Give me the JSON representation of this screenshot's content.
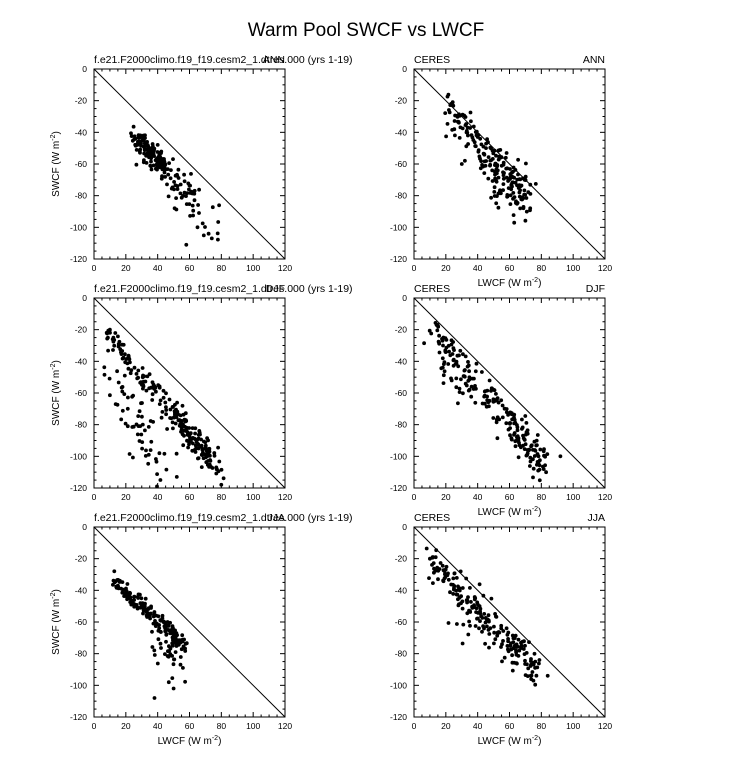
{
  "figure_title": "Warm Pool SWCF vs LWCF",
  "chart_data": [
    {
      "type": "scatter",
      "panel": "model-ANN",
      "left_label": "f.e21.F2000climo.f19_f19.cesm2_1.dtres.000 (yrs 1-19)",
      "right_label": "ANN",
      "xlabel": "LWCF (W m-2)",
      "ylabel": "SWCF (W m-2)",
      "xlim": [
        0,
        120
      ],
      "ylim": [
        -120,
        0
      ],
      "xticks": [
        "0",
        "20",
        "40",
        "60",
        "80",
        "100",
        "120"
      ],
      "yticks": [
        "0",
        "-20",
        "-40",
        "-60",
        "-80",
        "-100",
        "-120"
      ],
      "one_to_one_line": true,
      "show_xlabel": false,
      "show_ylabel": true,
      "clusters": [
        {
          "x0": 25,
          "y0": -42,
          "x1": 45,
          "y1": -62,
          "spread": 3,
          "n": 120
        },
        {
          "x0": 30,
          "y0": -55,
          "x1": 65,
          "y1": -80,
          "spread": 5,
          "n": 60
        },
        {
          "x0": 45,
          "y0": -70,
          "x1": 75,
          "y1": -100,
          "spread": 7,
          "n": 30
        }
      ],
      "points": [
        [
          58,
          -111
        ],
        [
          72,
          -104
        ],
        [
          74,
          -107
        ],
        [
          65,
          -100
        ]
      ]
    },
    {
      "type": "scatter",
      "panel": "obs-ANN",
      "left_label": "CERES",
      "right_label": "ANN",
      "xlabel": "LWCF (W m-2)",
      "ylabel": "SWCF (W m-2)",
      "xlim": [
        0,
        120
      ],
      "ylim": [
        -120,
        0
      ],
      "xticks": [
        "0",
        "20",
        "40",
        "60",
        "80",
        "100",
        "120"
      ],
      "yticks": [
        "0",
        "-20",
        "-40",
        "-60",
        "-80",
        "-100",
        "-120"
      ],
      "one_to_one_line": true,
      "show_xlabel": true,
      "show_ylabel": false,
      "clusters": [
        {
          "x0": 22,
          "y0": -28,
          "x1": 72,
          "y1": -80,
          "spread": 6,
          "n": 170
        },
        {
          "x0": 40,
          "y0": -55,
          "x1": 70,
          "y1": -88,
          "spread": 8,
          "n": 40
        }
      ],
      "points": [
        [
          30,
          -60
        ],
        [
          32,
          -58
        ],
        [
          73,
          -88
        ]
      ]
    },
    {
      "type": "scatter",
      "panel": "model-DJF",
      "left_label": "f.e21.F2000climo.f19_f19.cesm2_1.dtres.000 (yrs 1-19)",
      "right_label": "DJF",
      "xlabel": "LWCF (W m-2)",
      "ylabel": "SWCF (W m-2)",
      "xlim": [
        0,
        120
      ],
      "ylim": [
        -120,
        0
      ],
      "xticks": [
        "0",
        "20",
        "40",
        "60",
        "80",
        "100",
        "120"
      ],
      "yticks": [
        "0",
        "-20",
        "-40",
        "-60",
        "-80",
        "-100",
        "-120"
      ],
      "one_to_one_line": true,
      "show_xlabel": false,
      "show_ylabel": true,
      "clusters": [
        {
          "x0": 8,
          "y0": -22,
          "x1": 80,
          "y1": -110,
          "spread": 4,
          "n": 170
        },
        {
          "x0": 8,
          "y0": -35,
          "x1": 40,
          "y1": -110,
          "spread": 10,
          "n": 60
        },
        {
          "x0": 50,
          "y0": -75,
          "x1": 78,
          "y1": -105,
          "spread": 5,
          "n": 60
        }
      ],
      "points": [
        [
          8,
          -22
        ],
        [
          10,
          -20
        ],
        [
          52,
          -113
        ],
        [
          80,
          -118
        ]
      ]
    },
    {
      "type": "scatter",
      "panel": "obs-DJF",
      "left_label": "CERES",
      "right_label": "DJF",
      "xlabel": "LWCF (W m-2)",
      "ylabel": "SWCF (W m-2)",
      "xlim": [
        0,
        120
      ],
      "ylim": [
        -120,
        0
      ],
      "xticks": [
        "0",
        "20",
        "40",
        "60",
        "80",
        "100",
        "120"
      ],
      "yticks": [
        "0",
        "-20",
        "-40",
        "-60",
        "-80",
        "-100",
        "-120"
      ],
      "one_to_one_line": true,
      "show_xlabel": true,
      "show_ylabel": false,
      "clusters": [
        {
          "x0": 10,
          "y0": -18,
          "x1": 82,
          "y1": -105,
          "spread": 6,
          "n": 160
        },
        {
          "x0": 15,
          "y0": -40,
          "x1": 40,
          "y1": -65,
          "spread": 6,
          "n": 25
        },
        {
          "x0": 60,
          "y0": -75,
          "x1": 82,
          "y1": -108,
          "spread": 6,
          "n": 40
        }
      ],
      "points": [
        [
          92,
          -100
        ],
        [
          83,
          -110
        ],
        [
          74,
          -93
        ]
      ]
    },
    {
      "type": "scatter",
      "panel": "model-JJA",
      "left_label": "f.e21.F2000climo.f19_f19.cesm2_1.dtres.000 (yrs 1-19)",
      "right_label": "JJA",
      "xlabel": "LWCF (W m-2)",
      "ylabel": "SWCF (W m-2)",
      "xlim": [
        0,
        120
      ],
      "ylim": [
        -120,
        0
      ],
      "xticks": [
        "0",
        "20",
        "40",
        "60",
        "80",
        "100",
        "120"
      ],
      "yticks": [
        "0",
        "-20",
        "-40",
        "-60",
        "-80",
        "-100",
        "-120"
      ],
      "one_to_one_line": true,
      "show_xlabel": true,
      "show_ylabel": true,
      "clusters": [
        {
          "x0": 13,
          "y0": -35,
          "x1": 58,
          "y1": -75,
          "spread": 3,
          "n": 170
        },
        {
          "x0": 35,
          "y0": -65,
          "x1": 58,
          "y1": -90,
          "spread": 6,
          "n": 35
        }
      ],
      "points": [
        [
          38,
          -108
        ],
        [
          50,
          -102
        ],
        [
          47,
          -98
        ],
        [
          13,
          -35
        ],
        [
          15,
          -37
        ]
      ]
    },
    {
      "type": "scatter",
      "panel": "obs-JJA",
      "left_label": "CERES",
      "right_label": "JJA",
      "xlabel": "LWCF (W m-2)",
      "ylabel": "SWCF (W m-2)",
      "xlim": [
        0,
        120
      ],
      "ylim": [
        -120,
        0
      ],
      "xticks": [
        "0",
        "20",
        "40",
        "60",
        "80",
        "100",
        "120"
      ],
      "yticks": [
        "0",
        "-20",
        "-40",
        "-60",
        "-80",
        "-100",
        "-120"
      ],
      "one_to_one_line": true,
      "show_xlabel": true,
      "show_ylabel": false,
      "clusters": [
        {
          "x0": 10,
          "y0": -20,
          "x1": 78,
          "y1": -92,
          "spread": 5,
          "n": 170
        },
        {
          "x0": 25,
          "y0": -55,
          "x1": 70,
          "y1": -80,
          "spread": 8,
          "n": 40
        }
      ],
      "points": [
        [
          10,
          -20
        ],
        [
          12,
          -19
        ],
        [
          84,
          -94
        ],
        [
          75,
          -97
        ]
      ]
    }
  ]
}
